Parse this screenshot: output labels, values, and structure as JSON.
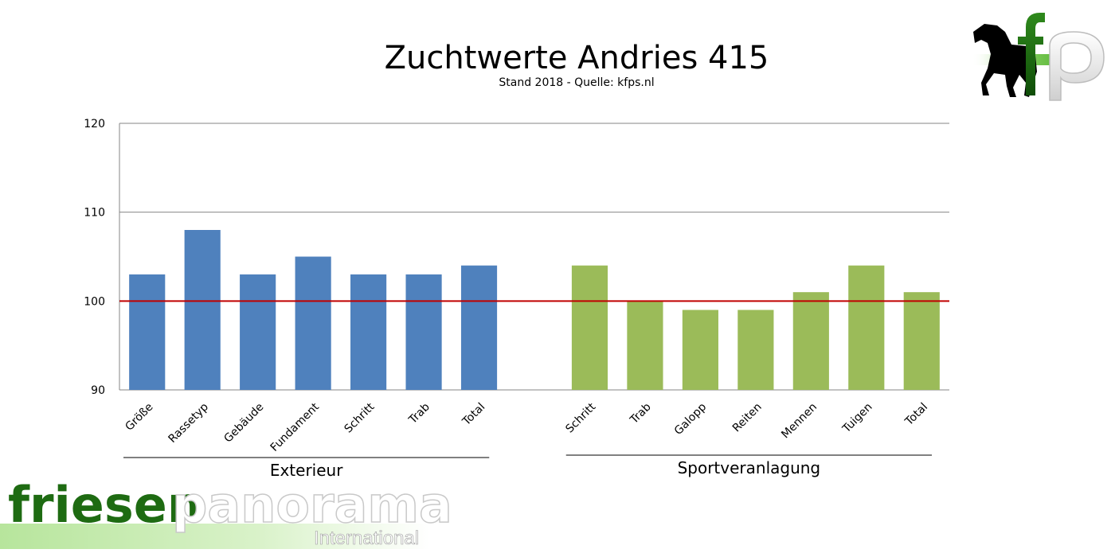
{
  "chart_data": {
    "type": "bar",
    "title": "Zuchtwerte Andries 415",
    "subtitle": "Stand 2018 - Quelle: kfps.nl",
    "ylim": [
      90,
      120
    ],
    "yticks": [
      90,
      100,
      110,
      120
    ],
    "reference_line": 100,
    "reference_color": "#C00000",
    "grid": true,
    "groups": [
      {
        "name": "Exterieur",
        "color": "#4F81BD",
        "categories": [
          "Größe",
          "Rassetyp",
          "Gebäude",
          "Fundament",
          "Schritt",
          "Trab",
          "Total"
        ],
        "values": [
          103,
          108,
          103,
          105,
          103,
          103,
          104
        ]
      },
      {
        "name": "Sportveranlagung",
        "color": "#9BBB59",
        "categories": [
          "Schritt",
          "Trab",
          "Galopp",
          "Reiten",
          "Mennen",
          "Tuigen",
          "Total"
        ],
        "values": [
          104,
          100,
          99,
          99,
          101,
          104,
          101
        ]
      }
    ]
  },
  "branding": {
    "logo_corner_text": "fp",
    "logo_bottom_main_1": "friesen",
    "logo_bottom_main_2": "panorama",
    "logo_bottom_sub": "International",
    "color_dark_green": "#1E6B12",
    "color_light_green": "#8ED36A"
  }
}
